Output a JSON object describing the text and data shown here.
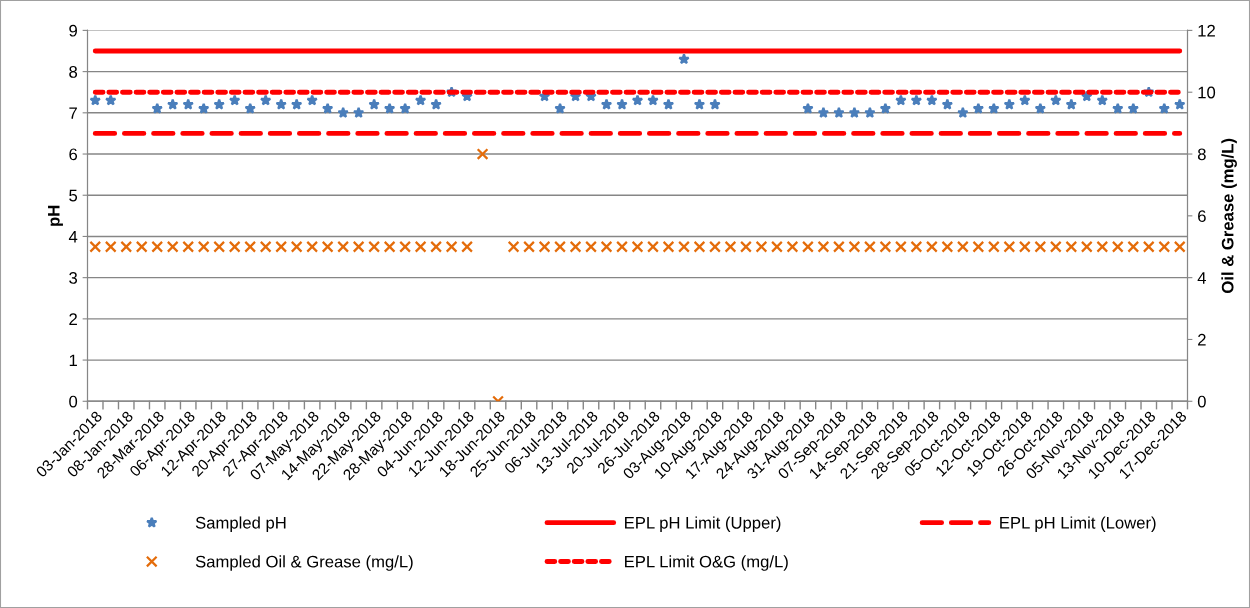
{
  "chart_data": {
    "type": "scatter",
    "ylabel": "pH",
    "y2label": "Oil & Grease (mg/L)",
    "categories": [
      "03-Jan-2018",
      null,
      "08-Jan-2018",
      null,
      "28-Mar-2018",
      null,
      "06-Apr-2018",
      null,
      "12-Apr-2018",
      null,
      "20-Apr-2018",
      null,
      "27-Apr-2018",
      null,
      "07-May-2018",
      null,
      "14-May-2018",
      null,
      "22-May-2018",
      null,
      "28-May-2018",
      null,
      "04-Jun-2018",
      null,
      "12-Jun-2018",
      null,
      "18-Jun-2018",
      null,
      "25-Jun-2018",
      null,
      "06-Jul-2018",
      null,
      "13-Jul-2018",
      null,
      "20-Jul-2018",
      null,
      "26-Jul-2018",
      null,
      "03-Aug-2018",
      null,
      "10-Aug-2018",
      null,
      "17-Aug-2018",
      null,
      "24-Aug-2018",
      null,
      "31-Aug-2018",
      null,
      "07-Sep-2018",
      null,
      "14-Sep-2018",
      null,
      "21-Sep-2018",
      null,
      "28-Sep-2018",
      null,
      "05-Oct-2018",
      null,
      "12-Oct-2018",
      null,
      "19-Oct-2018",
      null,
      "26-Oct-2018",
      null,
      "05-Nov-2018",
      null,
      "13-Nov-2018",
      null,
      "10-Dec-2018",
      null,
      "17-Dec-2018"
    ],
    "series": [
      {
        "name": "Sampled pH",
        "marker": "star",
        "color": "#4a7ebb",
        "values": [
          7.3,
          7.3,
          null,
          null,
          7.1,
          7.2,
          7.2,
          7.1,
          7.2,
          7.3,
          7.1,
          7.3,
          7.2,
          7.2,
          7.3,
          7.1,
          7.0,
          7.0,
          7.2,
          7.1,
          7.1,
          7.3,
          7.2,
          7.5,
          7.4,
          null,
          null,
          null,
          null,
          7.4,
          7.1,
          7.4,
          7.4,
          7.2,
          7.2,
          7.3,
          7.3,
          7.2,
          8.3,
          7.2,
          7.2,
          null,
          null,
          null,
          null,
          null,
          7.1,
          7.0,
          7.0,
          7.0,
          7.0,
          7.1,
          7.3,
          7.3,
          7.3,
          7.2,
          7.0,
          7.1,
          7.1,
          7.2,
          7.3,
          7.1,
          7.3,
          7.2,
          7.4,
          7.3,
          7.1,
          7.1,
          7.5,
          7.1,
          7.2
        ]
      },
      {
        "name": "EPL pH Limit (Upper)",
        "type": "line",
        "line_style": "solid",
        "marker": "none",
        "color": "#ff0000",
        "values": [
          8.5,
          8.5,
          8.5,
          8.5,
          8.5,
          8.5,
          8.5,
          8.5,
          8.5,
          8.5,
          8.5,
          8.5,
          8.5,
          8.5,
          8.5,
          8.5,
          8.5,
          8.5,
          8.5,
          8.5,
          8.5,
          8.5,
          8.5,
          8.5,
          8.5,
          8.5,
          8.5,
          8.5,
          8.5,
          8.5,
          8.5,
          8.5,
          8.5,
          8.5,
          8.5,
          8.5,
          8.5,
          8.5,
          8.5,
          8.5,
          8.5,
          8.5,
          8.5,
          8.5,
          8.5,
          8.5,
          8.5,
          8.5,
          8.5,
          8.5,
          8.5,
          8.5,
          8.5,
          8.5,
          8.5,
          8.5,
          8.5,
          8.5,
          8.5,
          8.5,
          8.5,
          8.5,
          8.5,
          8.5,
          8.5,
          8.5,
          8.5,
          8.5,
          8.5,
          8.5,
          8.5
        ]
      },
      {
        "name": "EPL pH Limit (Lower)",
        "type": "line",
        "line_style": "dashed",
        "marker": "none",
        "color": "#ff0000",
        "values": [
          6.5,
          6.5,
          6.5,
          6.5,
          6.5,
          6.5,
          6.5,
          6.5,
          6.5,
          6.5,
          6.5,
          6.5,
          6.5,
          6.5,
          6.5,
          6.5,
          6.5,
          6.5,
          6.5,
          6.5,
          6.5,
          6.5,
          6.5,
          6.5,
          6.5,
          6.5,
          6.5,
          6.5,
          6.5,
          6.5,
          6.5,
          6.5,
          6.5,
          6.5,
          6.5,
          6.5,
          6.5,
          6.5,
          6.5,
          6.5,
          6.5,
          6.5,
          6.5,
          6.5,
          6.5,
          6.5,
          6.5,
          6.5,
          6.5,
          6.5,
          6.5,
          6.5,
          6.5,
          6.5,
          6.5,
          6.5,
          6.5,
          6.5,
          6.5,
          6.5,
          6.5,
          6.5,
          6.5,
          6.5,
          6.5,
          6.5,
          6.5,
          6.5,
          6.5,
          6.5,
          6.5
        ]
      },
      {
        "name": "Sampled Oil & Grease (mg/L)",
        "axis": "y2",
        "marker": "cross",
        "color": "#e46c0a",
        "values": [
          5,
          5,
          5,
          5,
          5,
          5,
          5,
          5,
          5,
          5,
          5,
          5,
          5,
          5,
          5,
          5,
          5,
          5,
          5,
          5,
          5,
          5,
          5,
          5,
          5,
          8,
          0,
          5,
          5,
          5,
          5,
          5,
          5,
          5,
          5,
          5,
          5,
          5,
          5,
          5,
          5,
          5,
          5,
          5,
          5,
          5,
          5,
          5,
          5,
          5,
          5,
          5,
          5,
          5,
          5,
          5,
          5,
          5,
          5,
          5,
          5,
          5,
          5,
          5,
          5,
          5,
          5,
          5,
          5,
          5,
          5
        ]
      },
      {
        "name": "EPL Limit O&G (mg/L)",
        "type": "line",
        "axis": "y2",
        "line_style": "dotted",
        "marker": "none",
        "color": "#ff0000",
        "values": [
          10,
          10,
          10,
          10,
          10,
          10,
          10,
          10,
          10,
          10,
          10,
          10,
          10,
          10,
          10,
          10,
          10,
          10,
          10,
          10,
          10,
          10,
          10,
          10,
          10,
          10,
          10,
          10,
          10,
          10,
          10,
          10,
          10,
          10,
          10,
          10,
          10,
          10,
          10,
          10,
          10,
          10,
          10,
          10,
          10,
          10,
          10,
          10,
          10,
          10,
          10,
          10,
          10,
          10,
          10,
          10,
          10,
          10,
          10,
          10,
          10,
          10,
          10,
          10,
          10,
          10,
          10,
          10,
          10,
          10,
          10
        ]
      }
    ],
    "ylim": [
      0,
      9
    ],
    "yticks": [
      0,
      1,
      2,
      3,
      4,
      5,
      6,
      7,
      8,
      9
    ],
    "y2lim": [
      0,
      12
    ],
    "y2ticks": [
      0,
      2,
      4,
      6,
      8,
      10,
      12
    ],
    "grid": "y",
    "legend": "bottom"
  }
}
